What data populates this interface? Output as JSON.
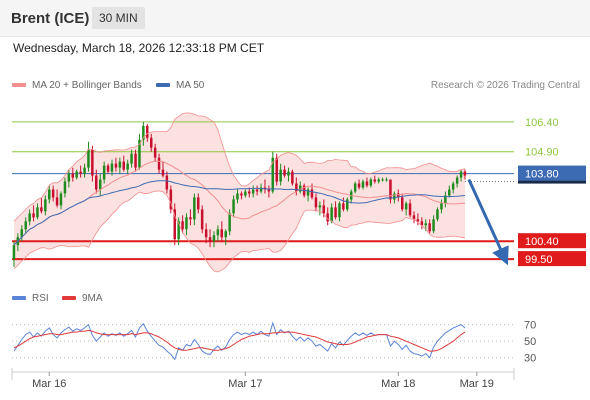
{
  "header": {
    "instrument": "Brent (ICE)",
    "timeframe": "30 MIN",
    "datetime": "Wednesday, March 18, 2026 12:33:18 PM CET"
  },
  "legend": {
    "bollinger_label": "MA 20 + Bollinger Bands",
    "ma50_label": "MA 50",
    "credit": "Research © 2026 Trading Central",
    "rsi_label": "RSI",
    "rsi_ma_label": "9MA"
  },
  "colors": {
    "bollinger": "#f28e8e",
    "band_fill": "#fbdcdc",
    "ma50": "#3d6bb3",
    "level_green": "#8dc63f",
    "support_red": "#e01b1b",
    "arrow": "#3468b0",
    "candle_up": "#1e8c1e",
    "candle_down": "#c8102e",
    "rsi": "#5b84d8",
    "rsi_ma": "#e03a3a"
  },
  "chart_data": {
    "type": "candlestick",
    "xlabels": [
      "Mar 16",
      "Mar 17",
      "Mar 18",
      "Mar 19"
    ],
    "price_range": [
      98.7,
      107.5
    ],
    "resistance_levels": [
      {
        "value": 106.4,
        "label": "106.40",
        "color": "#8dc63f"
      },
      {
        "value": 104.9,
        "label": "104.90",
        "color": "#8dc63f"
      }
    ],
    "current_price": {
      "value": 103.8,
      "label": "103.80"
    },
    "support_levels": [
      {
        "value": 100.4,
        "label": "100.40"
      },
      {
        "value": 99.5,
        "label": "99.50"
      }
    ],
    "forecast_arrow": {
      "from_index": 116,
      "from_price": 103.5,
      "to_index": 125,
      "to_price": 99.6
    },
    "ohlc": [
      [
        99.5,
        100.4,
        99.1,
        100.2
      ],
      [
        100.2,
        100.8,
        99.9,
        100.6
      ],
      [
        100.6,
        101.2,
        100.4,
        101.0
      ],
      [
        101.0,
        101.6,
        100.8,
        101.4
      ],
      [
        101.4,
        102.0,
        101.2,
        101.8
      ],
      [
        101.8,
        102.2,
        101.4,
        101.6
      ],
      [
        101.6,
        102.3,
        101.5,
        102.1
      ],
      [
        102.1,
        102.6,
        101.8,
        101.9
      ],
      [
        101.9,
        102.7,
        101.7,
        102.5
      ],
      [
        102.5,
        103.2,
        102.3,
        103.0
      ],
      [
        103.0,
        103.2,
        102.4,
        102.6
      ],
      [
        102.6,
        103.0,
        102.1,
        102.2
      ],
      [
        102.2,
        102.9,
        102.0,
        102.8
      ],
      [
        102.8,
        103.6,
        102.6,
        103.4
      ],
      [
        103.4,
        104.0,
        103.1,
        103.8
      ],
      [
        103.8,
        104.1,
        103.4,
        103.6
      ],
      [
        103.6,
        104.0,
        103.5,
        103.9
      ],
      [
        103.9,
        104.2,
        103.6,
        103.8
      ],
      [
        103.8,
        104.3,
        103.6,
        104.1
      ],
      [
        104.1,
        105.4,
        103.9,
        105.0
      ],
      [
        105.0,
        105.2,
        103.4,
        103.7
      ],
      [
        103.7,
        104.0,
        102.8,
        103.0
      ],
      [
        103.0,
        103.8,
        102.7,
        103.5
      ],
      [
        103.5,
        104.4,
        103.3,
        104.2
      ],
      [
        104.2,
        104.3,
        103.8,
        103.9
      ],
      [
        103.9,
        104.5,
        103.7,
        104.3
      ],
      [
        104.3,
        104.6,
        103.9,
        104.1
      ],
      [
        104.1,
        104.6,
        103.8,
        104.4
      ],
      [
        104.4,
        104.7,
        103.9,
        104.0
      ],
      [
        104.0,
        104.5,
        103.8,
        104.3
      ],
      [
        104.3,
        105.0,
        104.1,
        104.8
      ],
      [
        104.8,
        105.0,
        103.9,
        104.1
      ],
      [
        104.1,
        105.8,
        104.0,
        105.5
      ],
      [
        105.5,
        106.4,
        105.2,
        106.2
      ],
      [
        106.2,
        106.3,
        105.4,
        105.6
      ],
      [
        105.6,
        105.8,
        104.9,
        105.1
      ],
      [
        105.1,
        105.3,
        104.4,
        104.6
      ],
      [
        104.6,
        104.8,
        103.8,
        104.0
      ],
      [
        104.0,
        104.4,
        103.6,
        103.7
      ],
      [
        103.7,
        103.9,
        102.8,
        103.0
      ],
      [
        103.0,
        103.2,
        101.8,
        102.0
      ],
      [
        102.0,
        102.3,
        100.2,
        100.5
      ],
      [
        100.5,
        101.6,
        100.2,
        101.4
      ],
      [
        101.4,
        101.7,
        100.8,
        101.0
      ],
      [
        101.0,
        101.8,
        100.7,
        101.6
      ],
      [
        101.6,
        102.0,
        101.2,
        101.5
      ],
      [
        101.5,
        102.8,
        101.2,
        102.6
      ],
      [
        102.6,
        102.8,
        101.8,
        102.0
      ],
      [
        102.0,
        102.2,
        100.8,
        101.0
      ],
      [
        101.0,
        101.3,
        100.3,
        100.6
      ],
      [
        100.6,
        101.0,
        100.1,
        100.4
      ],
      [
        100.4,
        100.9,
        100.1,
        100.7
      ],
      [
        100.7,
        101.2,
        100.4,
        101.0
      ],
      [
        101.0,
        101.4,
        100.4,
        100.6
      ],
      [
        100.6,
        101.0,
        100.2,
        100.9
      ],
      [
        100.9,
        102.0,
        100.7,
        101.8
      ],
      [
        101.8,
        102.7,
        101.6,
        102.5
      ],
      [
        102.5,
        103.0,
        102.3,
        102.8
      ],
      [
        102.8,
        102.9,
        102.5,
        102.7
      ],
      [
        102.7,
        103.0,
        102.6,
        102.9
      ],
      [
        102.9,
        103.1,
        102.6,
        102.8
      ],
      [
        102.8,
        103.2,
        102.6,
        103.0
      ],
      [
        103.0,
        103.2,
        102.7,
        102.9
      ],
      [
        102.9,
        103.3,
        102.8,
        103.1
      ],
      [
        103.1,
        103.5,
        102.8,
        103.0
      ],
      [
        103.0,
        103.2,
        102.6,
        102.9
      ],
      [
        102.9,
        104.9,
        102.8,
        104.6
      ],
      [
        104.6,
        104.8,
        103.2,
        103.4
      ],
      [
        103.4,
        104.3,
        103.2,
        104.0
      ],
      [
        104.0,
        104.2,
        103.6,
        103.7
      ],
      [
        103.7,
        104.1,
        103.4,
        103.9
      ],
      [
        103.9,
        104.0,
        103.2,
        103.3
      ],
      [
        103.3,
        103.6,
        102.7,
        102.9
      ],
      [
        102.9,
        103.4,
        102.8,
        103.2
      ],
      [
        103.2,
        103.3,
        102.6,
        102.7
      ],
      [
        102.7,
        103.1,
        102.4,
        103.0
      ],
      [
        103.0,
        103.3,
        102.5,
        102.6
      ],
      [
        102.6,
        102.8,
        101.9,
        102.1
      ],
      [
        102.1,
        102.4,
        101.7,
        102.2
      ],
      [
        102.2,
        102.5,
        101.6,
        101.8
      ],
      [
        101.8,
        102.1,
        101.2,
        101.4
      ],
      [
        101.4,
        102.3,
        101.3,
        102.1
      ],
      [
        102.1,
        102.4,
        101.5,
        101.6
      ],
      [
        101.6,
        102.4,
        101.4,
        102.3
      ],
      [
        102.3,
        102.6,
        101.9,
        102.0
      ],
      [
        102.0,
        102.6,
        101.9,
        102.5
      ],
      [
        102.5,
        103.0,
        102.3,
        102.9
      ],
      [
        102.9,
        103.4,
        102.8,
        103.3
      ],
      [
        103.3,
        103.5,
        103.0,
        103.1
      ],
      [
        103.1,
        103.5,
        103.0,
        103.4
      ],
      [
        103.4,
        103.6,
        103.1,
        103.2
      ],
      [
        103.2,
        103.6,
        103.1,
        103.5
      ],
      [
        103.5,
        103.7,
        103.3,
        103.4
      ],
      [
        103.4,
        103.6,
        103.3,
        103.5
      ],
      [
        103.5,
        103.6,
        103.4,
        103.5
      ],
      [
        103.5,
        103.6,
        103.4,
        103.5
      ],
      [
        103.5,
        103.5,
        102.3,
        102.5
      ],
      [
        102.5,
        102.9,
        102.3,
        102.8
      ],
      [
        102.8,
        103.0,
        102.4,
        102.6
      ],
      [
        102.6,
        102.8,
        101.9,
        102.0
      ],
      [
        102.0,
        102.4,
        101.7,
        102.3
      ],
      [
        102.3,
        102.5,
        101.6,
        101.7
      ],
      [
        101.7,
        101.9,
        101.3,
        101.5
      ],
      [
        101.5,
        101.8,
        101.2,
        101.4
      ],
      [
        101.4,
        101.6,
        101.0,
        101.2
      ],
      [
        101.2,
        101.5,
        100.9,
        101.3
      ],
      [
        101.3,
        101.5,
        100.8,
        100.9
      ],
      [
        100.9,
        101.7,
        100.8,
        101.5
      ],
      [
        101.5,
        102.1,
        101.4,
        102.0
      ],
      [
        102.0,
        102.5,
        101.8,
        102.3
      ],
      [
        102.3,
        102.9,
        102.1,
        102.7
      ],
      [
        102.7,
        103.2,
        102.6,
        103.0
      ],
      [
        103.0,
        103.4,
        102.8,
        103.3
      ],
      [
        103.3,
        103.7,
        103.1,
        103.6
      ],
      [
        103.6,
        104.0,
        103.4,
        103.9
      ],
      [
        103.9,
        104.0,
        103.5,
        103.7
      ]
    ],
    "rsi_axis": {
      "ticks": [
        70,
        50,
        30
      ],
      "range": [
        20,
        78
      ]
    },
    "rsi": [
      38,
      45,
      52,
      58,
      61,
      55,
      60,
      56,
      62,
      66,
      58,
      54,
      60,
      64,
      67,
      62,
      65,
      63,
      66,
      70,
      57,
      50,
      55,
      60,
      56,
      59,
      57,
      60,
      56,
      59,
      63,
      55,
      66,
      71,
      62,
      56,
      50,
      45,
      43,
      38,
      34,
      28,
      42,
      39,
      46,
      44,
      52,
      46,
      38,
      35,
      34,
      40,
      44,
      39,
      43,
      52,
      58,
      61,
      58,
      60,
      58,
      61,
      58,
      62,
      58,
      56,
      72,
      58,
      64,
      60,
      62,
      56,
      51,
      55,
      50,
      54,
      50,
      44,
      46,
      42,
      38,
      47,
      42,
      49,
      45,
      51,
      56,
      60,
      57,
      60,
      57,
      60,
      57,
      58,
      58,
      58,
      44,
      50,
      46,
      40,
      45,
      38,
      35,
      34,
      32,
      35,
      30,
      43,
      50,
      55,
      60,
      63,
      66,
      68,
      70,
      66
    ],
    "rsi_ma": [
      42,
      44,
      47,
      50,
      53,
      55,
      56,
      57,
      58,
      59,
      59,
      58,
      58,
      59,
      60,
      61,
      61,
      62,
      62,
      63,
      62,
      60,
      59,
      58,
      58,
      58,
      58,
      58,
      58,
      58,
      59,
      58,
      59,
      60,
      60,
      59,
      57,
      55,
      52,
      49,
      45,
      42,
      40,
      39,
      39,
      40,
      41,
      42,
      42,
      41,
      40,
      39,
      39,
      40,
      41,
      43,
      46,
      49,
      52,
      54,
      56,
      57,
      58,
      59,
      59,
      59,
      60,
      60,
      61,
      61,
      61,
      61,
      60,
      59,
      58,
      57,
      56,
      55,
      53,
      51,
      49,
      48,
      47,
      46,
      46,
      46,
      47,
      49,
      51,
      53,
      55,
      56,
      57,
      58,
      58,
      58,
      56,
      55,
      54,
      52,
      50,
      48,
      46,
      44,
      42,
      40,
      38,
      38,
      39,
      41,
      44,
      47,
      50,
      54,
      58,
      61
    ]
  }
}
